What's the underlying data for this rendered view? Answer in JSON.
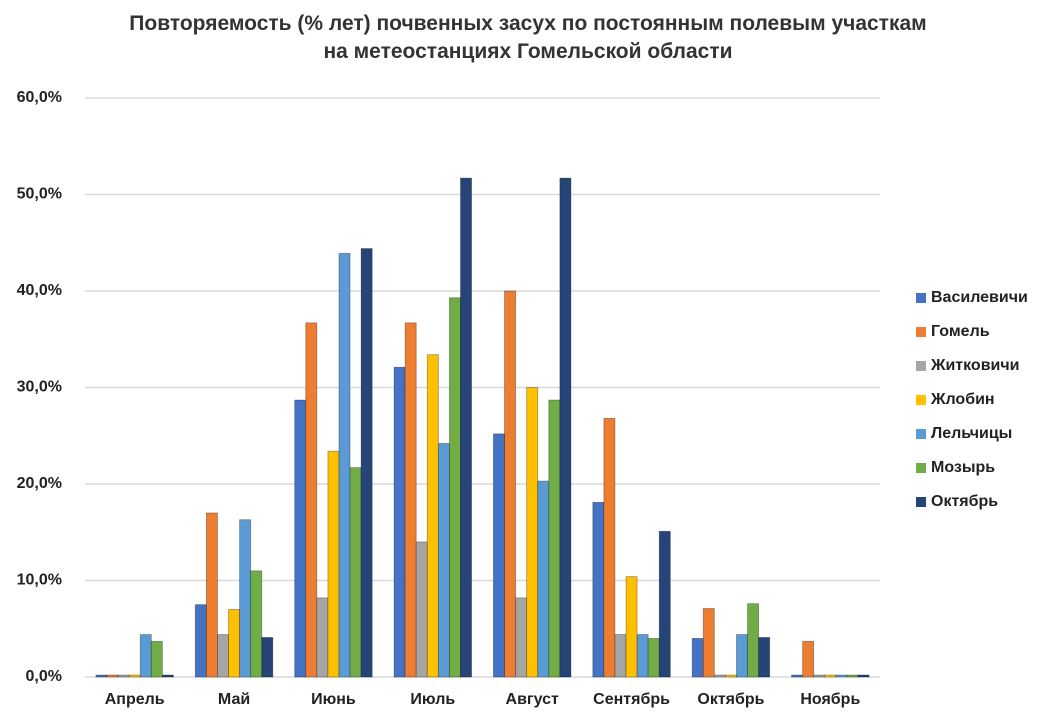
{
  "chart_data": {
    "type": "bar",
    "title": "Повторяемость (% лет) почвенных засух по постоянным полевым участкам\nна метеостанциях Гомельской области",
    "categories": [
      "Апрель",
      "Май",
      "Июнь",
      "Июль",
      "Август",
      "Сентябрь",
      "Октябрь",
      "Ноябрь"
    ],
    "series": [
      {
        "name": "Василевичи",
        "color": "#4472c4",
        "values": [
          0,
          7.5,
          28.7,
          32.1,
          25.2,
          18.1,
          4.0,
          0
        ]
      },
      {
        "name": "Гомель",
        "color": "#ed7d31",
        "values": [
          0,
          17.0,
          36.7,
          36.7,
          40.0,
          26.8,
          7.1,
          3.7
        ]
      },
      {
        "name": "Житковичи",
        "color": "#a5a5a5",
        "values": [
          0,
          4.4,
          8.2,
          14.0,
          8.2,
          4.4,
          0,
          0
        ]
      },
      {
        "name": "Жлобин",
        "color": "#ffc000",
        "values": [
          0,
          7.0,
          23.4,
          33.4,
          30.0,
          10.4,
          0,
          0
        ]
      },
      {
        "name": "Лельчицы",
        "color": "#5b9bd5",
        "values": [
          4.4,
          16.3,
          43.9,
          24.2,
          20.3,
          4.4,
          4.4,
          0
        ]
      },
      {
        "name": "Мозырь",
        "color": "#70ad47",
        "values": [
          3.7,
          11.0,
          21.7,
          39.3,
          28.7,
          4.0,
          7.6,
          0
        ]
      },
      {
        "name": "Октябрь",
        "color": "#264478",
        "values": [
          0,
          4.1,
          44.4,
          51.7,
          51.7,
          15.1,
          4.1,
          0
        ]
      }
    ],
    "ylim": [
      0,
      60
    ],
    "yticks": [
      {
        "value": 0,
        "label": "0,0%"
      },
      {
        "value": 10,
        "label": "10,0%"
      },
      {
        "value": 20,
        "label": "20,0%"
      },
      {
        "value": 30,
        "label": "30,0%"
      },
      {
        "value": 40,
        "label": "40,0%"
      },
      {
        "value": 50,
        "label": "50,0%"
      },
      {
        "value": 60,
        "label": "60,0%"
      }
    ],
    "grid": true,
    "legend": "right"
  }
}
